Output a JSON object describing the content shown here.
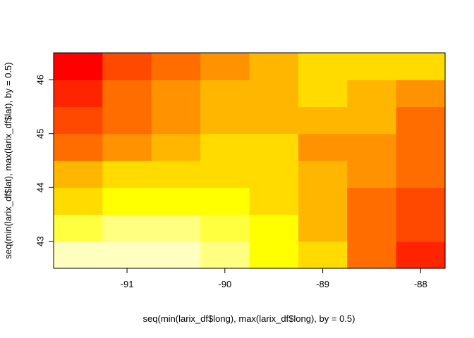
{
  "chart_data": {
    "type": "heatmap",
    "title": "",
    "xlabel": "seq(min(larix_df$long), max(larix_df$long), by = 0.5)",
    "ylabel": "seq(min(larix_df$lat), max(larix_df$lat), by = 0.5)",
    "x": [
      -91.5,
      -91.0,
      -90.5,
      -90.0,
      -89.5,
      -89.0,
      -88.5,
      -88.0
    ],
    "y": [
      42.75,
      43.25,
      43.75,
      44.25,
      44.75,
      45.25,
      45.75,
      46.25
    ],
    "xlim": [
      -91.75,
      -87.75
    ],
    "ylim": [
      42.5,
      46.5
    ],
    "x_ticks": [
      -91,
      -90,
      -89,
      -88
    ],
    "y_ticks": [
      43,
      44,
      45,
      46
    ],
    "x_tick_labels": [
      "-91",
      "-90",
      "-89",
      "-88"
    ],
    "y_tick_labels": [
      "43",
      "44",
      "45",
      "46"
    ],
    "color_levels": [
      "#FF0000",
      "#FF2400",
      "#FF4900",
      "#FF6D00",
      "#FF9200",
      "#FFB600",
      "#FFDB00",
      "#FFFF00",
      "#FFFF40",
      "#FFFF80",
      "#FFFFBF"
    ],
    "z_levels_description": "rows from bottom (y[0]) to top (y[7]); columns from x[0] to x[7]; values are indices into color_levels",
    "z": [
      [
        10,
        10,
        10,
        9,
        7,
        6,
        3,
        1
      ],
      [
        8,
        9,
        9,
        8,
        7,
        5,
        3,
        2
      ],
      [
        6,
        7,
        7,
        7,
        6,
        5,
        3,
        2
      ],
      [
        5,
        6,
        6,
        6,
        6,
        5,
        4,
        3
      ],
      [
        3,
        4,
        5,
        6,
        6,
        4,
        4,
        3
      ],
      [
        2,
        3,
        4,
        5,
        5,
        5,
        5,
        3
      ],
      [
        1,
        3,
        4,
        5,
        5,
        6,
        5,
        4
      ],
      [
        0,
        2,
        3,
        4,
        5,
        6,
        6,
        6
      ]
    ]
  }
}
